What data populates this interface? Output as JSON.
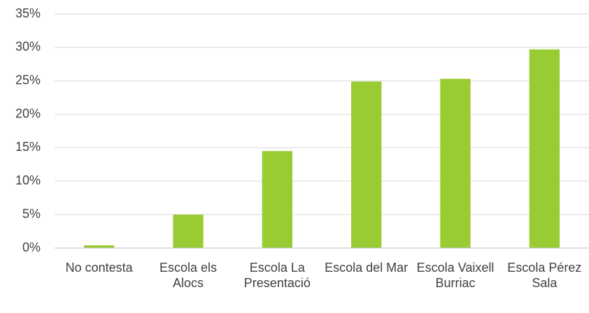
{
  "chart_data": {
    "type": "bar",
    "categories": [
      "No contesta",
      "Escola els Alocs",
      "Escola La Presentació",
      "Escola del Mar",
      "Escola Vaixell Burriac",
      "Escola Pérez Sala"
    ],
    "values": [
      0.4,
      5.0,
      14.5,
      24.9,
      25.3,
      29.7
    ],
    "color": "#99cc33",
    "ylim": [
      0,
      35
    ],
    "yticks": [
      {
        "value": 0,
        "label": "0%"
      },
      {
        "value": 5,
        "label": "5%"
      },
      {
        "value": 10,
        "label": "10%"
      },
      {
        "value": 15,
        "label": "15%"
      },
      {
        "value": 20,
        "label": "20%"
      },
      {
        "value": 25,
        "label": "25%"
      },
      {
        "value": 30,
        "label": "30%"
      },
      {
        "value": 35,
        "label": "35%"
      }
    ],
    "grid": true
  }
}
